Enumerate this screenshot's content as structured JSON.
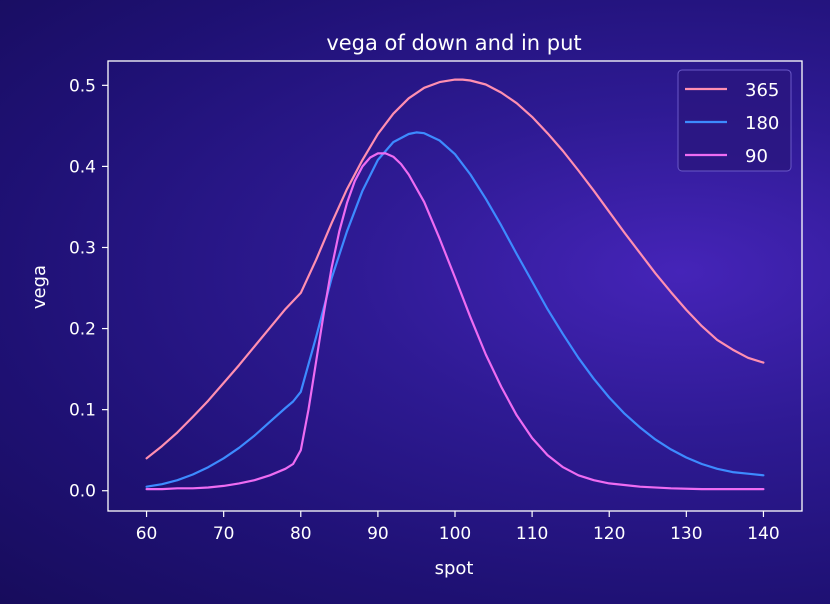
{
  "chart_data": {
    "type": "line",
    "title": "vega of down and in put",
    "xlabel": "spot",
    "ylabel": "vega",
    "xlim": [
      55,
      145
    ],
    "ylim": [
      -0.025,
      0.53
    ],
    "xticks": [
      60,
      70,
      80,
      90,
      100,
      110,
      120,
      130,
      140
    ],
    "yticks": [
      0.0,
      0.1,
      0.2,
      0.3,
      0.4,
      0.5
    ],
    "ytick_labels": [
      "0.0",
      "0.1",
      "0.2",
      "0.3",
      "0.4",
      "0.5"
    ],
    "grid": false,
    "legend_position": "top-right",
    "series": [
      {
        "name": "365",
        "color": "#ff8fb1",
        "x": [
          60,
          62,
          64,
          66,
          68,
          70,
          72,
          74,
          76,
          78,
          79,
          80,
          82,
          84,
          86,
          88,
          90,
          92,
          94,
          96,
          98,
          100,
          101,
          102,
          104,
          106,
          108,
          110,
          112,
          114,
          116,
          118,
          120,
          122,
          124,
          126,
          128,
          130,
          132,
          134,
          136,
          138,
          140
        ],
        "y": [
          0.04,
          0.055,
          0.072,
          0.091,
          0.111,
          0.133,
          0.155,
          0.178,
          0.201,
          0.224,
          0.234,
          0.244,
          0.285,
          0.33,
          0.372,
          0.408,
          0.44,
          0.465,
          0.484,
          0.497,
          0.504,
          0.507,
          0.507,
          0.506,
          0.501,
          0.491,
          0.478,
          0.461,
          0.441,
          0.419,
          0.395,
          0.37,
          0.344,
          0.318,
          0.293,
          0.268,
          0.245,
          0.223,
          0.203,
          0.186,
          0.174,
          0.164,
          0.158
        ]
      },
      {
        "name": "180",
        "color": "#3d8bff",
        "x": [
          60,
          62,
          64,
          66,
          68,
          70,
          72,
          74,
          76,
          78,
          79,
          80,
          82,
          84,
          86,
          88,
          90,
          92,
          94,
          95,
          96,
          98,
          100,
          102,
          104,
          106,
          108,
          110,
          112,
          114,
          116,
          118,
          120,
          122,
          124,
          126,
          128,
          130,
          132,
          134,
          136,
          138,
          140
        ],
        "y": [
          0.005,
          0.008,
          0.013,
          0.02,
          0.029,
          0.04,
          0.053,
          0.068,
          0.085,
          0.102,
          0.11,
          0.122,
          0.19,
          0.262,
          0.32,
          0.37,
          0.408,
          0.43,
          0.44,
          0.442,
          0.441,
          0.432,
          0.415,
          0.39,
          0.36,
          0.327,
          0.292,
          0.258,
          0.224,
          0.193,
          0.164,
          0.138,
          0.115,
          0.095,
          0.078,
          0.063,
          0.051,
          0.041,
          0.033,
          0.027,
          0.023,
          0.021,
          0.019
        ]
      },
      {
        "name": "90",
        "color": "#ee6cf2",
        "x": [
          60,
          62,
          64,
          66,
          68,
          70,
          72,
          74,
          76,
          78,
          79,
          80,
          81,
          82,
          83,
          84,
          85,
          86,
          87,
          88,
          89,
          90,
          91,
          92,
          93,
          94,
          96,
          98,
          100,
          102,
          104,
          106,
          108,
          110,
          112,
          114,
          116,
          118,
          120,
          124,
          128,
          132,
          136,
          140
        ],
        "y": [
          0.002,
          0.002,
          0.003,
          0.003,
          0.004,
          0.006,
          0.009,
          0.013,
          0.019,
          0.027,
          0.033,
          0.05,
          0.1,
          0.16,
          0.22,
          0.275,
          0.32,
          0.355,
          0.382,
          0.4,
          0.411,
          0.416,
          0.416,
          0.412,
          0.403,
          0.39,
          0.356,
          0.311,
          0.263,
          0.214,
          0.168,
          0.128,
          0.093,
          0.065,
          0.044,
          0.029,
          0.019,
          0.013,
          0.009,
          0.005,
          0.003,
          0.002,
          0.002,
          0.002
        ]
      }
    ]
  }
}
